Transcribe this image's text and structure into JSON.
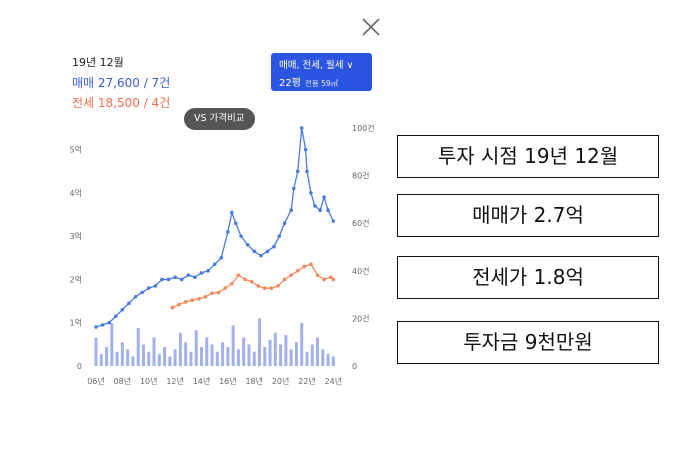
{
  "panel": {
    "period": "19년 12월",
    "sale_text": "매매 27,600 / 7건",
    "jeonse_text": "전세 18,500 / 4건",
    "type_selector": {
      "types": "매매, 전세, 월세 ∨",
      "size": "22평",
      "area": "전용 59㎡"
    },
    "vs_button": "VS 가격비교"
  },
  "colors": {
    "sale": "#4a7ae0",
    "jeonse": "#f08a5a",
    "count_bar": "#5570e0",
    "selector_bg": "#2b54e0"
  },
  "icons": {
    "close": "close-icon"
  },
  "annotations": [
    "투자 시점 19년 12월",
    "매매가 2.7억",
    "전세가 1.8억",
    "투자금 9천만원"
  ],
  "chart_data": {
    "type": "line",
    "x_ticks": [
      "06년",
      "08년",
      "10년",
      "12년",
      "14년",
      "16년",
      "18년",
      "20년",
      "22년",
      "24년"
    ],
    "y_left_ticks": [
      "0",
      "1억",
      "2억",
      "3억",
      "4억",
      "5억"
    ],
    "y_right_ticks": [
      "0",
      "20건",
      "40건",
      "60건",
      "80건",
      "100건"
    ],
    "xlim": [
      2006,
      2024.2
    ],
    "ylim_left": [
      0,
      5.5
    ],
    "ylim_right": [
      0,
      100
    ],
    "series": [
      {
        "name": "매매",
        "x": [
          2006,
          2006.5,
          2007,
          2007.5,
          2008,
          2008.5,
          2009,
          2009.5,
          2010,
          2010.5,
          2011,
          2011.5,
          2012,
          2012.5,
          2013,
          2013.5,
          2014,
          2014.5,
          2015,
          2015.5,
          2016,
          2016.3,
          2016.6,
          2017,
          2017.5,
          2018,
          2018.5,
          2019,
          2019.5,
          2019.9,
          2020.3,
          2020.8,
          2021,
          2021.3,
          2021.6,
          2021.9,
          2022,
          2022.3,
          2022.6,
          2023,
          2023.3,
          2023.6,
          2024
        ],
        "y": [
          0.9,
          0.95,
          1.0,
          1.15,
          1.3,
          1.45,
          1.6,
          1.7,
          1.8,
          1.85,
          2.0,
          2.0,
          2.05,
          2.0,
          2.1,
          2.05,
          2.15,
          2.2,
          2.35,
          2.5,
          3.1,
          3.55,
          3.3,
          3.0,
          2.8,
          2.65,
          2.55,
          2.65,
          2.76,
          3.0,
          3.3,
          3.6,
          4.1,
          4.5,
          5.5,
          5.0,
          4.5,
          4.0,
          3.7,
          3.6,
          3.9,
          3.6,
          3.35
        ]
      },
      {
        "name": "전세",
        "x": [
          2011.8,
          2012.3,
          2012.8,
          2013.3,
          2013.8,
          2014.3,
          2014.8,
          2015.3,
          2015.8,
          2016.3,
          2016.8,
          2017.3,
          2017.8,
          2018.3,
          2018.8,
          2019.3,
          2019.8,
          2020.3,
          2020.8,
          2021.3,
          2021.8,
          2022.3,
          2022.8,
          2023.3,
          2023.8,
          2024
        ],
        "y": [
          1.35,
          1.42,
          1.48,
          1.52,
          1.55,
          1.6,
          1.68,
          1.7,
          1.8,
          1.9,
          2.1,
          2.0,
          1.95,
          1.85,
          1.8,
          1.8,
          1.85,
          2.0,
          2.1,
          2.2,
          2.3,
          2.35,
          2.1,
          2.0,
          2.05,
          2.0
        ]
      }
    ],
    "count_bars": {
      "x": [
        2006,
        2006.4,
        2006.8,
        2007.2,
        2007.6,
        2008,
        2008.4,
        2008.8,
        2009.2,
        2009.6,
        2010,
        2010.4,
        2010.8,
        2011.2,
        2011.6,
        2012,
        2012.4,
        2012.8,
        2013.2,
        2013.6,
        2014,
        2014.4,
        2014.8,
        2015.2,
        2015.6,
        2016,
        2016.4,
        2016.8,
        2017.2,
        2017.6,
        2018,
        2018.4,
        2018.8,
        2019.2,
        2019.6,
        2020,
        2020.4,
        2020.8,
        2021.2,
        2021.6,
        2022,
        2022.4,
        2022.8,
        2023.2,
        2023.6,
        2024
      ],
      "values": [
        12,
        5,
        8,
        18,
        6,
        10,
        7,
        4,
        16,
        9,
        6,
        12,
        5,
        8,
        4,
        7,
        14,
        10,
        6,
        15,
        8,
        12,
        9,
        6,
        10,
        8,
        17,
        7,
        12,
        9,
        6,
        20,
        8,
        11,
        14,
        9,
        13,
        7,
        10,
        18,
        6,
        9,
        12,
        7,
        5,
        4
      ]
    }
  }
}
